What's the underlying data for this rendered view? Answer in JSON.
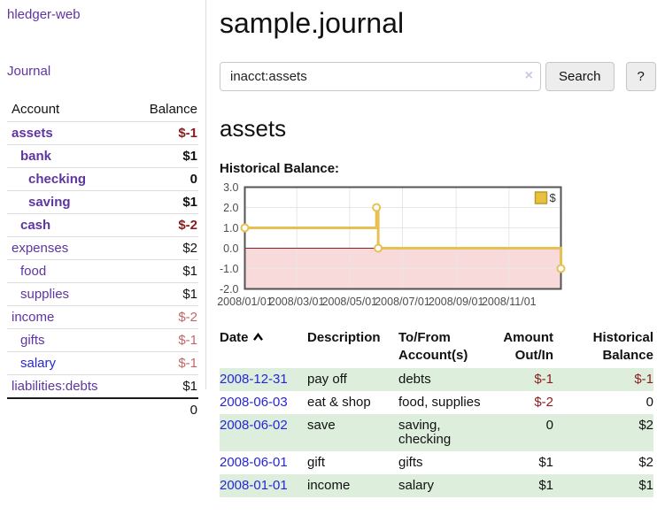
{
  "brand": "hledger-web",
  "nav": {
    "journal_label": "Journal"
  },
  "sidebar": {
    "account_header": "Account",
    "balance_header": "Balance",
    "accounts": [
      {
        "name": "assets",
        "balance": "$-1"
      },
      {
        "name": "bank",
        "balance": "$1"
      },
      {
        "name": "checking",
        "balance": "0"
      },
      {
        "name": "saving",
        "balance": "$1"
      },
      {
        "name": "cash",
        "balance": "$-2"
      },
      {
        "name": "expenses",
        "balance": "$2"
      },
      {
        "name": "food",
        "balance": "$1"
      },
      {
        "name": "supplies",
        "balance": "$1"
      },
      {
        "name": "income",
        "balance": "$-2"
      },
      {
        "name": "gifts",
        "balance": "$-1"
      },
      {
        "name": "salary",
        "balance": "$-1"
      },
      {
        "name": "liabilities:debts",
        "balance": "$1"
      }
    ],
    "total": "0"
  },
  "header": {
    "title": "sample.journal"
  },
  "search": {
    "value": "inacct:assets",
    "clear_icon": "×",
    "button_label": "Search",
    "help_label": "?"
  },
  "account_view": {
    "heading": "assets",
    "chart_title": "Historical Balance:"
  },
  "chart_data": {
    "type": "line",
    "step": true,
    "title": "Historical Balance",
    "series": [
      {
        "name": "$",
        "points": [
          [
            "2008-01-01",
            1.0
          ],
          [
            "2008-06-01",
            2.0
          ],
          [
            "2008-06-03",
            0.0
          ],
          [
            "2008-12-31",
            -1.0
          ]
        ]
      }
    ],
    "x_range": [
      "2008-01-01",
      "2008-12-31"
    ],
    "x_ticks": [
      "2008/01/01",
      "2008/03/01",
      "2008/05/01",
      "2008/07/01",
      "2008/09/01",
      "2008/11/01"
    ],
    "y_ticks": [
      "3.0",
      "2.0",
      "1.0",
      "0.0",
      "-1.0",
      "-2.0"
    ],
    "ylim": [
      -2,
      3
    ],
    "legend": {
      "label": "$",
      "position": "top-right"
    },
    "grid": true,
    "negative_region_shaded": true,
    "series_color": "#e8c052",
    "legend_fill": "#e9c13f",
    "legend_border": "#b89a2e",
    "negative_fill": "#f9dada",
    "zero_line_color": "#8b1f1f",
    "grid_color": "#e6e6e6",
    "border_color": "#545454",
    "tick_color": "#4d4d4d"
  },
  "register": {
    "columns": [
      "Date",
      "Description",
      "To/From Account(s)",
      "Amount Out/In",
      "Historical Balance"
    ],
    "rows": [
      {
        "date": "2008-12-31",
        "description": "pay off",
        "accounts": "debts",
        "amount": "$-1",
        "balance": "$-1"
      },
      {
        "date": "2008-06-03",
        "description": "eat & shop",
        "accounts": "food, supplies",
        "amount": "$-2",
        "balance": "0"
      },
      {
        "date": "2008-06-02",
        "description": "save",
        "accounts": "saving, checking",
        "amount": "0",
        "balance": "$2"
      },
      {
        "date": "2008-06-01",
        "description": "gift",
        "accounts": "gifts",
        "amount": "$1",
        "balance": "$2"
      },
      {
        "date": "2008-01-01",
        "description": "income",
        "accounts": "salary",
        "amount": "$1",
        "balance": "$1"
      }
    ]
  }
}
